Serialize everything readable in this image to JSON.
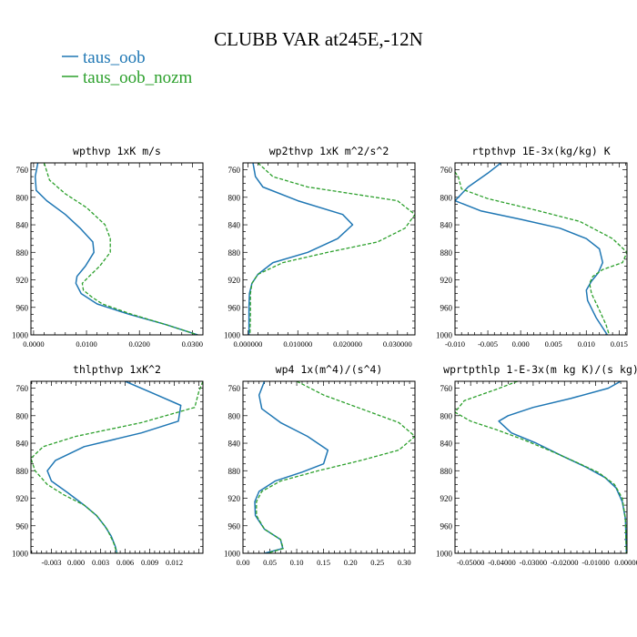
{
  "figure": {
    "title": "CLUBB VAR at245E,-12N",
    "legend": [
      {
        "name": "taus_oob",
        "color": "#1f77b4",
        "dash": "solid"
      },
      {
        "name": "taus_oob_nozm",
        "color": "#2ca02c",
        "dash": "dashed"
      }
    ]
  },
  "chart_data": [
    {
      "type": "line",
      "title": "wpthvp  1xK m/s",
      "xlim": [
        -0.0005,
        0.032
      ],
      "ylim": [
        1000,
        750
      ],
      "xticks": [
        "0.0000",
        "0.0100",
        "0.0200",
        "0.0300"
      ],
      "xtick_values": [
        0.0,
        0.01,
        0.02,
        0.03
      ],
      "yticks": [
        760,
        800,
        840,
        880,
        920,
        960,
        1000
      ],
      "series": [
        {
          "name": "taus_oob",
          "x": [
            0.0008,
            0.0003,
            0.0005,
            0.0025,
            0.006,
            0.0088,
            0.0112,
            0.0114,
            0.0098,
            0.0082,
            0.008,
            0.009,
            0.012,
            0.018,
            0.025,
            0.031
          ],
          "y": [
            750,
            770,
            790,
            805,
            825,
            845,
            865,
            880,
            900,
            915,
            925,
            940,
            955,
            970,
            985,
            1000
          ]
        },
        {
          "name": "taus_oob_nozm",
          "x": [
            0.002,
            0.003,
            0.006,
            0.01,
            0.0135,
            0.0145,
            0.0145,
            0.0125,
            0.0105,
            0.0092,
            0.0094,
            0.011,
            0.013,
            0.0185,
            0.025,
            0.031
          ],
          "y": [
            750,
            775,
            795,
            815,
            840,
            860,
            880,
            900,
            915,
            925,
            935,
            945,
            955,
            970,
            985,
            1000
          ]
        }
      ]
    },
    {
      "type": "line",
      "title": "wp2thvp  1xK m^2/s^2",
      "xlim": [
        -0.001,
        0.0335
      ],
      "ylim": [
        1000,
        750
      ],
      "xticks": [
        "0.000000",
        "0.010000",
        "0.020000",
        "0.030000"
      ],
      "xtick_values": [
        0.0,
        0.01,
        0.02,
        0.03
      ],
      "yticks": [
        760,
        800,
        840,
        880,
        920,
        960,
        1000
      ],
      "series": [
        {
          "name": "taus_oob",
          "x": [
            0.001,
            0.0015,
            0.003,
            0.01,
            0.019,
            0.021,
            0.018,
            0.012,
            0.005,
            0.002,
            0.0008,
            0.0003,
            0.0002,
            0.0002,
            0.0002
          ],
          "y": [
            750,
            770,
            785,
            805,
            825,
            840,
            860,
            880,
            895,
            912,
            925,
            940,
            960,
            980,
            1000
          ]
        },
        {
          "name": "taus_oob_nozm",
          "x": [
            0.002,
            0.005,
            0.012,
            0.021,
            0.03,
            0.0335,
            0.0315,
            0.026,
            0.016,
            0.007,
            0.002,
            0.0008,
            0.0005,
            0.0005,
            0.0004
          ],
          "y": [
            750,
            770,
            785,
            795,
            805,
            825,
            845,
            865,
            880,
            895,
            912,
            925,
            940,
            970,
            1000
          ]
        }
      ]
    },
    {
      "type": "line",
      "title": "rtpthvp  1E-3x(kg/kg) K",
      "xlim": [
        -0.01,
        0.0162
      ],
      "ylim": [
        1000,
        750
      ],
      "xticks": [
        "-0.010",
        "-0.005",
        "0.000",
        "0.005",
        "0.010",
        "0.015"
      ],
      "xtick_values": [
        -0.01,
        -0.005,
        0.0,
        0.005,
        0.01,
        0.015
      ],
      "yticks": [
        760,
        800,
        840,
        880,
        920,
        960,
        1000
      ],
      "series": [
        {
          "name": "taus_oob",
          "x": [
            -0.003,
            -0.005,
            -0.008,
            -0.01,
            -0.006,
            0.0,
            0.006,
            0.01,
            0.012,
            0.0125,
            0.0118,
            0.0108,
            0.01,
            0.0102,
            0.0115,
            0.0132
          ],
          "y": [
            750,
            765,
            785,
            805,
            820,
            832,
            845,
            860,
            875,
            895,
            910,
            922,
            935,
            950,
            975,
            1000
          ]
        },
        {
          "name": "taus_oob_nozm",
          "x": [
            -0.011,
            -0.0095,
            -0.009,
            -0.005,
            0.002,
            0.009,
            0.014,
            0.0162,
            0.0155,
            0.0125,
            0.011,
            0.0105,
            0.0108,
            0.0118,
            0.013,
            0.0135
          ],
          "y": [
            750,
            770,
            788,
            802,
            818,
            835,
            860,
            880,
            895,
            905,
            915,
            925,
            940,
            960,
            985,
            1000
          ]
        }
      ]
    },
    {
      "type": "line",
      "title": "thlpthvp  1xK^2",
      "xlim": [
        -0.0055,
        0.0155
      ],
      "ylim": [
        1000,
        750
      ],
      "xticks": [
        "-0.003",
        "0.000",
        "0.003",
        "0.006",
        "0.009",
        "0.012"
      ],
      "xtick_values": [
        -0.003,
        0.0,
        0.003,
        0.006,
        0.009,
        0.012
      ],
      "yticks": [
        760,
        800,
        840,
        880,
        920,
        960,
        1000
      ],
      "series": [
        {
          "name": "taus_oob",
          "x": [
            0.006,
            0.0095,
            0.0128,
            0.0125,
            0.008,
            0.001,
            -0.0025,
            -0.0035,
            -0.003,
            -0.001,
            0.001,
            0.0025,
            0.0035,
            0.0043,
            0.0048,
            0.005
          ],
          "y": [
            750,
            768,
            785,
            808,
            825,
            845,
            865,
            880,
            895,
            912,
            930,
            945,
            960,
            975,
            990,
            1000
          ]
        },
        {
          "name": "taus_oob_nozm",
          "x": [
            0.0155,
            0.015,
            0.0145,
            0.008,
            0.0,
            -0.004,
            -0.0055,
            -0.005,
            -0.0035,
            -0.0015,
            0.001,
            0.0025,
            0.0038,
            0.0046,
            0.005
          ],
          "y": [
            750,
            765,
            788,
            810,
            830,
            845,
            862,
            880,
            900,
            915,
            930,
            945,
            965,
            985,
            1000
          ]
        }
      ]
    },
    {
      "type": "line",
      "title": "wp4  1x(m^4)/(s^4)",
      "xlim": [
        0.0,
        0.32
      ],
      "ylim": [
        1000,
        750
      ],
      "xticks": [
        "0.00",
        "0.05",
        "0.10",
        "0.15",
        "0.20",
        "0.25",
        "0.30"
      ],
      "xtick_values": [
        0.0,
        0.05,
        0.1,
        0.15,
        0.2,
        0.25,
        0.3
      ],
      "yticks": [
        760,
        800,
        840,
        880,
        920,
        960,
        1000
      ],
      "series": [
        {
          "name": "taus_oob",
          "x": [
            0.04,
            0.03,
            0.035,
            0.07,
            0.12,
            0.158,
            0.15,
            0.11,
            0.06,
            0.03,
            0.022,
            0.023,
            0.04,
            0.07,
            0.074,
            0.04
          ],
          "y": [
            750,
            770,
            790,
            810,
            830,
            850,
            870,
            882,
            895,
            910,
            925,
            945,
            965,
            980,
            993,
            1000
          ]
        },
        {
          "name": "taus_oob_nozm",
          "x": [
            0.1,
            0.15,
            0.22,
            0.29,
            0.32,
            0.29,
            0.22,
            0.14,
            0.07,
            0.035,
            0.025,
            0.025,
            0.04,
            0.07,
            0.075,
            0.045
          ],
          "y": [
            750,
            770,
            790,
            810,
            830,
            850,
            865,
            880,
            895,
            910,
            925,
            945,
            965,
            980,
            993,
            1000
          ]
        }
      ]
    },
    {
      "type": "line",
      "title": "wprtpthlp  1-E-3x(m kg K)/(s kg)",
      "xlim": [
        -0.055,
        0.0
      ],
      "ylim": [
        1000,
        750
      ],
      "xticks": [
        "-0.05000",
        "-0.04000",
        "-0.03000",
        "-0.02000",
        "-0.01000",
        "0.00000"
      ],
      "xtick_values": [
        -0.05,
        -0.04,
        -0.03,
        -0.02,
        -0.01,
        0.0
      ],
      "yticks": [
        760,
        800,
        840,
        880,
        920,
        960,
        1000
      ],
      "series": [
        {
          "name": "taus_oob",
          "x": [
            -0.002,
            -0.006,
            -0.018,
            -0.03,
            -0.038,
            -0.041,
            -0.037,
            -0.029,
            -0.021,
            -0.013,
            -0.007,
            -0.0035,
            -0.0015,
            -0.0005,
            -0.0002
          ],
          "y": [
            750,
            760,
            775,
            788,
            800,
            808,
            825,
            840,
            858,
            875,
            890,
            905,
            925,
            950,
            1000
          ]
        },
        {
          "name": "taus_oob_nozm",
          "x": [
            -0.035,
            -0.042,
            -0.052,
            -0.055,
            -0.05,
            -0.042,
            -0.033,
            -0.024,
            -0.016,
            -0.009,
            -0.004,
            -0.0015,
            -0.0005,
            -0.0002
          ],
          "y": [
            750,
            762,
            778,
            795,
            808,
            820,
            835,
            852,
            868,
            883,
            900,
            920,
            950,
            1000
          ]
        }
      ]
    }
  ]
}
